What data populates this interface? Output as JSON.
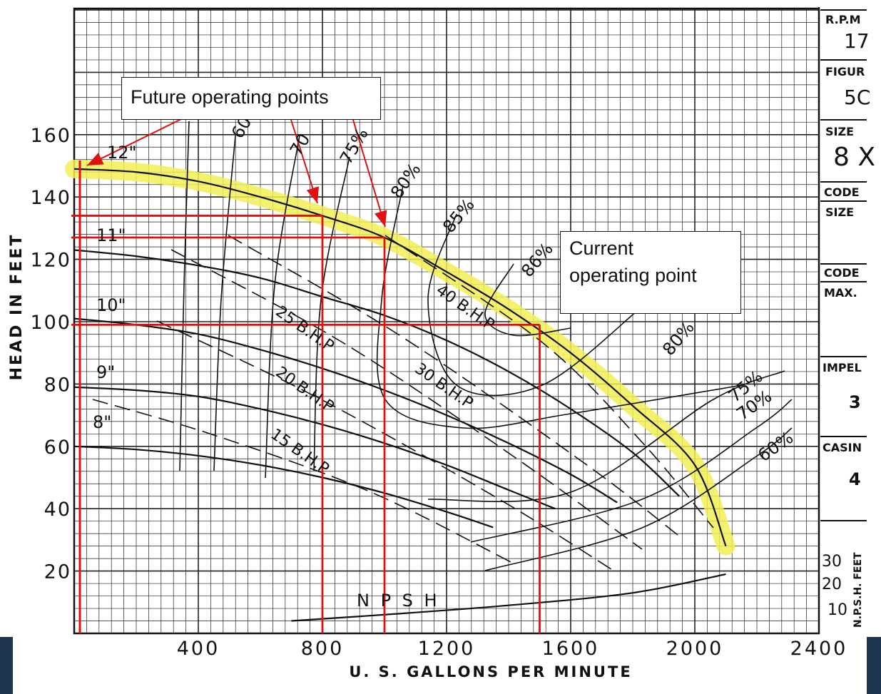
{
  "chart_data": {
    "type": "line",
    "xlabel": "U. S. GALLONS PER MINUTE",
    "ylabel": "HEAD IN FEET",
    "xlim": [
      0,
      2400
    ],
    "ylim": [
      0,
      175
    ],
    "x_ticks": [
      "400",
      "800",
      "1200",
      "1600",
      "2000",
      "2400"
    ],
    "y_ticks": [
      "20",
      "40",
      "60",
      "80",
      "100",
      "120",
      "140",
      "160"
    ],
    "grid": true,
    "series": [
      {
        "name": "12\"",
        "x": [
          0,
          200,
          400,
          600,
          800,
          1000,
          1200,
          1400,
          1600,
          1800,
          2000,
          2100
        ],
        "y": [
          149,
          148,
          145,
          140,
          134,
          127,
          116,
          104,
          90,
          73,
          54,
          28
        ]
      },
      {
        "name": "11\"",
        "x": [
          0,
          200,
          400,
          600,
          800,
          1000,
          1200,
          1400,
          1600,
          1800,
          1950
        ],
        "y": [
          123,
          121,
          118,
          114,
          108,
          102,
          94,
          84,
          72,
          58,
          44
        ]
      },
      {
        "name": "10\"",
        "x": [
          0,
          200,
          400,
          600,
          800,
          1000,
          1200,
          1400,
          1600,
          1750
        ],
        "y": [
          101,
          99,
          96,
          91,
          85,
          78,
          70,
          61,
          51,
          42
        ]
      },
      {
        "name": "9\"",
        "x": [
          0,
          200,
          400,
          600,
          800,
          1000,
          1200,
          1400,
          1550
        ],
        "y": [
          79,
          78,
          76,
          72,
          67,
          61,
          54,
          46,
          40
        ]
      },
      {
        "name": "8\"",
        "x": [
          0,
          200,
          400,
          600,
          800,
          1000,
          1200,
          1350
        ],
        "y": [
          60,
          59,
          57,
          54,
          50,
          45,
          39,
          34
        ]
      }
    ],
    "npsh": {
      "label": "N P S H",
      "x": [
        700,
        1000,
        1400,
        1800,
        2100
      ],
      "y": [
        4,
        6,
        9,
        13,
        19
      ]
    },
    "npsh_axis": {
      "label": "N.P.S.H. FEET",
      "ticks": [
        "30",
        "20",
        "10"
      ]
    },
    "efficiency_labels": [
      "60",
      "70",
      "75%",
      "80%",
      "85%",
      "86%",
      "80%",
      "75%",
      "70%",
      "60%"
    ],
    "bhp_labels": [
      "15 B.H.P",
      "20 B.H.P",
      "25 B.H.P",
      "30 B.H.P",
      "40 B.H.P"
    ],
    "impeller_labels": [
      "12\"",
      "11\"",
      "10\"",
      "9\"",
      "8\""
    ],
    "operating_lines": [
      {
        "x": 800,
        "y": 134
      },
      {
        "x": 1000,
        "y": 127
      },
      {
        "x": 1500,
        "y": 99
      }
    ],
    "annotations": {
      "future": "Future operating points",
      "current": [
        "Current",
        "operating point"
      ]
    }
  },
  "side_panel": {
    "rpm_label": "R.P.M",
    "rpm_value": "17",
    "figure_label": "FIGUR",
    "figure_value": "5C",
    "size_label": "SIZE",
    "size_value": "8 X",
    "code1": "CODE",
    "size2": "SIZE",
    "code2": "CODE",
    "max_label": "MAX.",
    "impeller_label": "IMPEL",
    "impeller_value": "3",
    "casing_label": "CASIN",
    "casing_value": "4"
  },
  "colors": {
    "curve": "#111111",
    "highlight": "#f2ee55",
    "red": "#e01010",
    "grid": "#222222"
  }
}
